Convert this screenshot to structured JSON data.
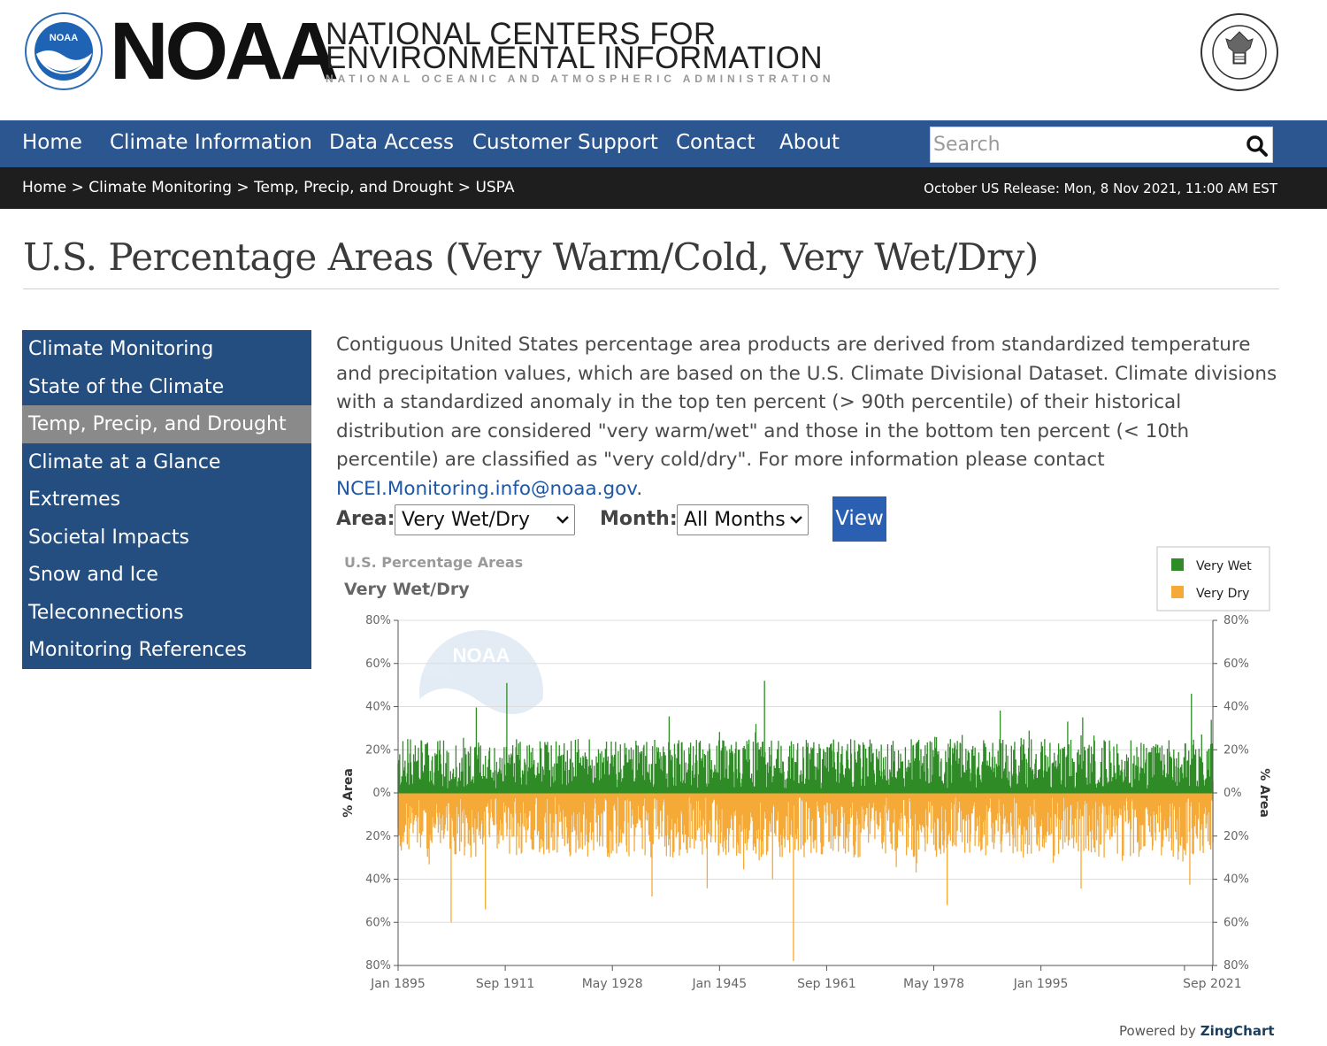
{
  "header": {
    "logo_text": "NOAA",
    "emblem_text": "NOAA",
    "center_line1": "NATIONAL CENTERS FOR",
    "center_line2": "ENVIRONMENTAL INFORMATION",
    "center_line3": "NATIONAL OCEANIC AND ATMOSPHERIC ADMINISTRATION",
    "brand_color": "#2b568f"
  },
  "nav": {
    "items": [
      {
        "label": "Home"
      },
      {
        "label": "Climate Information"
      },
      {
        "label": "Data Access"
      },
      {
        "label": "Customer Support"
      },
      {
        "label": "Contact"
      },
      {
        "label": "About"
      }
    ],
    "search_placeholder": "Search"
  },
  "breadcrumb": {
    "items": [
      "Home",
      "Climate Monitoring",
      "Temp, Precip, and Drought",
      "USPA"
    ],
    "separator": ">",
    "release": "October US Release: Mon, 8 Nov 2021, 11:00 AM EST"
  },
  "page": {
    "title": "U.S. Percentage Areas (Very Warm/Cold, Very Wet/Dry)"
  },
  "sidebar": {
    "items": [
      {
        "label": "Climate Monitoring",
        "active": false
      },
      {
        "label": "State of the Climate",
        "active": false
      },
      {
        "label": "Temp, Precip, and Drought",
        "active": true
      },
      {
        "label": "Climate at a Glance",
        "active": false
      },
      {
        "label": "Extremes",
        "active": false
      },
      {
        "label": "Societal Impacts",
        "active": false
      },
      {
        "label": "Snow and Ice",
        "active": false
      },
      {
        "label": "Teleconnections",
        "active": false
      },
      {
        "label": "Monitoring References",
        "active": false
      }
    ]
  },
  "intro": {
    "text": "Contiguous United States percentage area products are derived from standardized temperature and precipitation values, which are based on the U.S. Climate Divisional Dataset. Climate divisions with a standardized anomaly in the top ten percent (> 90th percentile) of their historical distribution are considered \"very warm/wet\" and those in the bottom ten percent (< 10th percentile) are classified as \"very cold/dry\". For more information please contact ",
    "email": "NCEI.Monitoring.info@noaa.gov",
    "end": "."
  },
  "controls": {
    "area_label": "Area:",
    "area_value": "Very Wet/Dry",
    "month_label": "Month:",
    "month_value": "All Months",
    "view_label": "View"
  },
  "chart_data": {
    "type": "bar",
    "title": "U.S. Percentage Areas",
    "subtitle": "Very Wet/Dry",
    "watermark": "NOAA",
    "ylabel": "% Area",
    "y2label": "% Area",
    "ylim": [
      -80,
      80
    ],
    "y_ticks": [
      "80%",
      "60%",
      "40%",
      "20%",
      "0%",
      "20%",
      "40%",
      "60%",
      "80%"
    ],
    "x_range": [
      "1895-01",
      "2021-10"
    ],
    "x_ticks": [
      "Jan 1895",
      "Sep 1911",
      "May 1928",
      "Jan 1945",
      "Sep 1961",
      "May 1978",
      "Jan 1995",
      "Sep 2021"
    ],
    "series": [
      {
        "name": "Very Wet",
        "color": "#2e8b25",
        "direction": "up"
      },
      {
        "name": "Very Dry",
        "color": "#f5a936",
        "direction": "down"
      }
    ],
    "peaks": [
      {
        "x": "1911-12",
        "series": "Very Wet",
        "value": 51
      },
      {
        "x": "1952-01",
        "series": "Very Wet",
        "value": 52
      },
      {
        "x": "2018-06",
        "series": "Very Wet",
        "value": 46
      },
      {
        "x": "1934-07",
        "series": "Very Dry",
        "value": 48
      },
      {
        "x": "1903-04",
        "series": "Very Dry",
        "value": 60
      },
      {
        "x": "1956-07",
        "series": "Very Dry",
        "value": 78
      },
      {
        "x": "1980-06",
        "series": "Very Dry",
        "value": 52
      },
      {
        "x": "1908-08",
        "series": "Very Dry",
        "value": 54
      }
    ],
    "typical_range": {
      "Very Wet": [
        2,
        25
      ],
      "Very Dry": [
        2,
        30
      ]
    },
    "legend_position": "top-right",
    "grid": true,
    "credit_prefix": "Powered by",
    "credit_brand": "ZingChart"
  }
}
